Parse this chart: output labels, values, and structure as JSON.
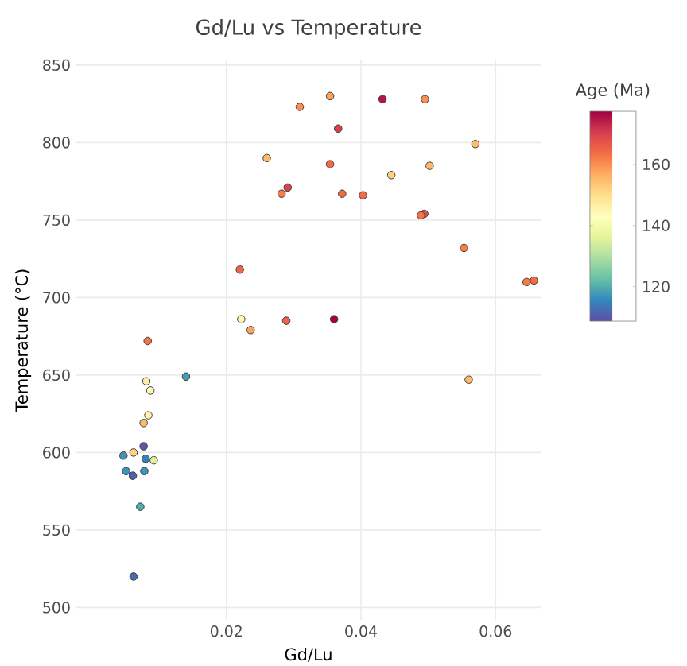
{
  "chart_data": {
    "type": "scatter",
    "title": "Gd/Lu vs Temperature",
    "xlabel": "Gd/Lu",
    "ylabel": "Temperature (°C)",
    "clabel": "Age (Ma)",
    "x": [
      0.0309,
      0.026,
      0.0282,
      0.0291,
      0.022,
      0.0222,
      0.0236,
      0.0289,
      0.0083,
      0.0354,
      0.0432,
      0.0495,
      0.0366,
      0.057,
      0.0354,
      0.0502,
      0.0445,
      0.0372,
      0.0403,
      0.0494,
      0.0489,
      0.0553,
      0.0646,
      0.0657,
      0.036,
      0.056,
      0.014,
      0.0081,
      0.0087,
      0.0084,
      0.0077,
      0.0047,
      0.0062,
      0.0077,
      0.008,
      0.0092,
      0.0051,
      0.0078,
      0.0061,
      0.0072,
      0.0062
    ],
    "values": [
      823,
      790,
      767,
      771,
      718,
      686,
      679,
      685,
      672,
      830,
      828,
      828,
      809,
      799,
      786,
      785,
      779,
      767,
      766,
      754,
      753,
      732,
      710,
      711,
      686,
      647,
      649,
      646,
      640,
      624,
      619,
      598,
      600,
      604,
      596,
      595,
      588,
      588,
      585,
      565,
      520
    ],
    "cvalues": [
      160,
      155,
      162,
      170,
      165,
      145,
      158,
      165,
      163,
      158,
      175,
      160,
      170,
      155,
      164,
      155,
      152,
      164,
      164,
      168,
      163,
      162,
      162,
      164,
      177,
      155,
      118,
      147,
      142,
      146,
      155,
      117,
      152,
      110,
      115,
      135,
      117,
      117,
      111,
      120,
      112
    ],
    "xlim": [
      -0.0023,
      0.0667
    ],
    "ylim": [
      492,
      853
    ],
    "xticks": [
      0.02,
      0.04,
      0.06
    ],
    "yticks": [
      500,
      550,
      600,
      650,
      700,
      750,
      800,
      850
    ],
    "clim": [
      108.7,
      177.4
    ],
    "cticks": [
      120,
      140,
      160
    ],
    "grid": true,
    "marker": "circle"
  }
}
